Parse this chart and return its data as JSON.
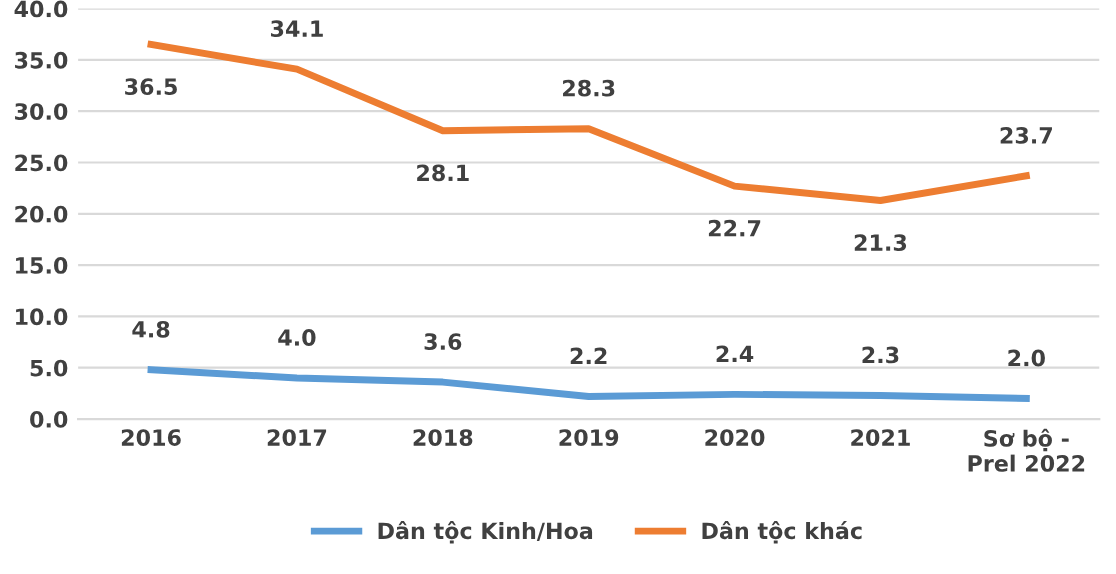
{
  "chart_data": {
    "type": "line",
    "categories": [
      "2016",
      "2017",
      "2018",
      "2019",
      "2020",
      "2021",
      "Sơ bộ -\nPrel 2022"
    ],
    "series": [
      {
        "name": "Dân tộc Kinh/Hoa",
        "color": "#5b9bd5",
        "values": [
          4.8,
          4.0,
          3.6,
          2.2,
          2.4,
          2.3,
          2.0
        ],
        "value_labels": [
          "4.8",
          "4.0",
          "3.6",
          "2.2",
          "2.4",
          "2.3",
          "2.0"
        ]
      },
      {
        "name": "Dân tộc khác",
        "color": "#ed7d31",
        "values": [
          36.5,
          34.1,
          28.1,
          28.3,
          22.7,
          21.3,
          23.7
        ],
        "value_labels": [
          "36.5",
          "34.1",
          "28.1",
          "28.3",
          "22.7",
          "21.3",
          "23.7"
        ]
      }
    ],
    "ylim": [
      0,
      40
    ],
    "yticks": [
      {
        "value": 0,
        "label": "0.0"
      },
      {
        "value": 5,
        "label": "5.0"
      },
      {
        "value": 10,
        "label": "10.0"
      },
      {
        "value": 15,
        "label": "15.0"
      },
      {
        "value": 20,
        "label": "20.0"
      },
      {
        "value": 25,
        "label": "25.0"
      },
      {
        "value": 30,
        "label": "30.0"
      },
      {
        "value": 35,
        "label": "35.0"
      },
      {
        "value": 40,
        "label": "40.0"
      }
    ],
    "grid": "y",
    "legend": "bottom",
    "marker": "none",
    "line_style": "solid"
  }
}
